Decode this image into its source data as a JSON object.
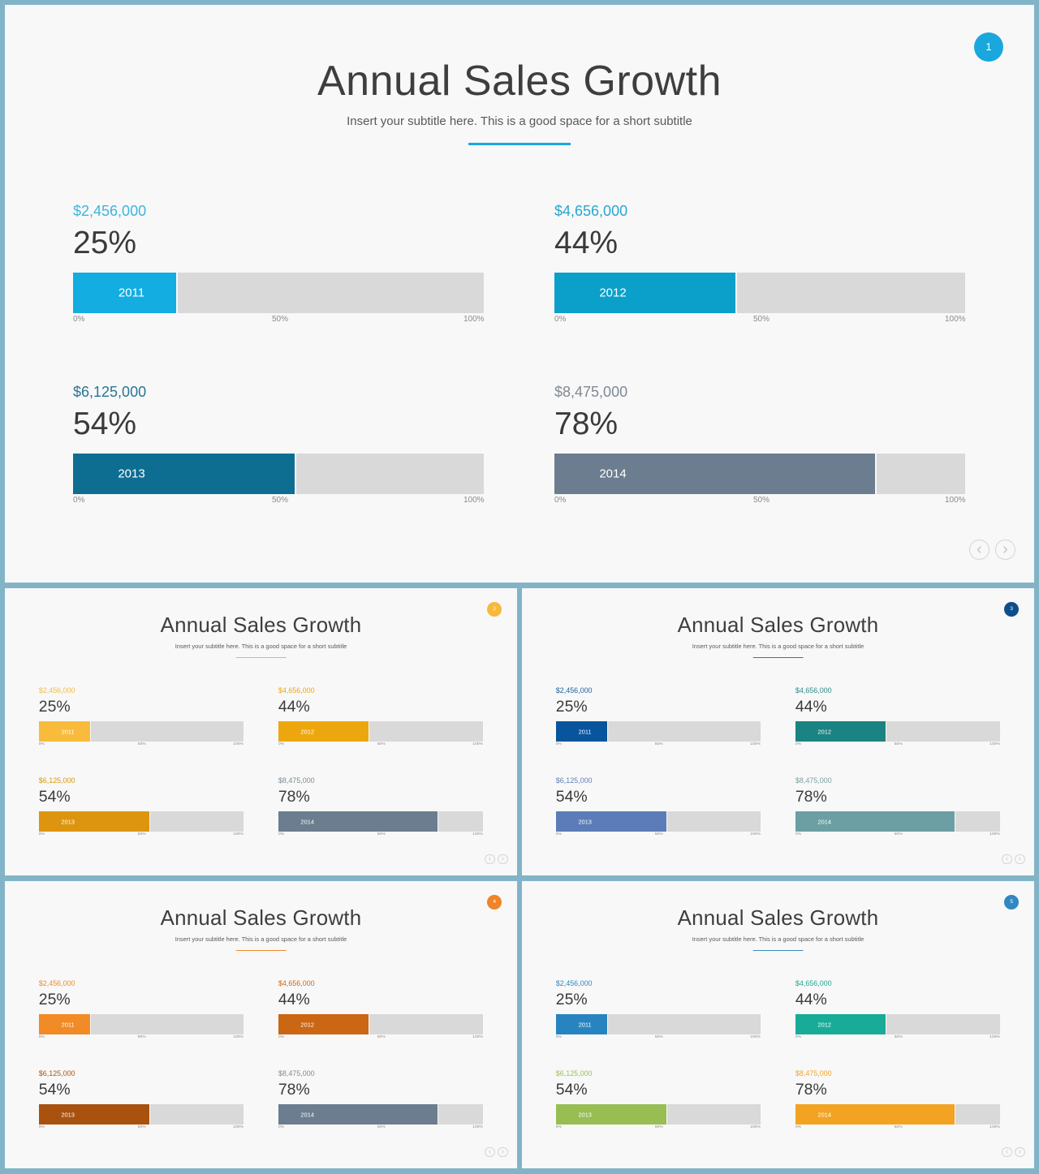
{
  "title": "Annual Sales Growth",
  "subtitle": "Insert your subtitle here. This is a good space for a short subtitle",
  "ticks": [
    "0%",
    "50%",
    "100%"
  ],
  "nav": {
    "prev": "‹",
    "next": "›"
  },
  "metrics": [
    {
      "amount": "$2,456,000",
      "percent": "25%",
      "year": "2011",
      "fraction": 0.25
    },
    {
      "amount": "$4,656,000",
      "percent": "44%",
      "year": "2012",
      "fraction": 0.44
    },
    {
      "amount": "$6,125,000",
      "percent": "54%",
      "year": "2013",
      "fraction": 0.54
    },
    {
      "amount": "$8,475,000",
      "percent": "78%",
      "year": "2014",
      "fraction": 0.78
    }
  ],
  "slides": [
    {
      "page": "1",
      "page_color": "#1aa7dd",
      "underline_color": "#1aa7dd",
      "bar_colors": [
        "#13ade2",
        "#0ba0c9",
        "#0e6e92",
        "#6b7d8f"
      ],
      "amount_colors": [
        "#3eb5de",
        "#2aa6cf",
        "#2a7591",
        "#7f8a94"
      ]
    },
    {
      "page": "2",
      "page_color": "#f6b93d",
      "underline_color": "#f2b640",
      "bar_colors": [
        "#f8bb3c",
        "#eda70e",
        "#dd9510",
        "#6b7d8f"
      ],
      "amount_colors": [
        "#f2bb42",
        "#eea510",
        "#d9930f",
        "#7f8a94"
      ]
    },
    {
      "page": "3",
      "page_color": "#0e4e8a",
      "underline_color": "#2f7c98",
      "bar_colors": [
        "#08559d",
        "#1b8381",
        "#5b7cb8",
        "#6b9fa4"
      ],
      "amount_colors": [
        "#1b5f9e",
        "#2c8b89",
        "#5f7fb8",
        "#7a9ea2"
      ]
    },
    {
      "page": "4",
      "page_color": "#ef8428",
      "underline_color": "#ef8a2a",
      "bar_colors": [
        "#f28a25",
        "#cb6614",
        "#a9520f",
        "#6b7d8f"
      ],
      "amount_colors": [
        "#ef8a2a",
        "#cc6814",
        "#a9540f",
        "#7f8a94"
      ]
    },
    {
      "page": "5",
      "page_color": "#2f87c3",
      "underline_color": "#3c8dbf",
      "bar_colors": [
        "#2884c0",
        "#18ab98",
        "#98bd53",
        "#f2a322"
      ],
      "amount_colors": [
        "#2f87c3",
        "#1fa894",
        "#9bbd58",
        "#f0a324"
      ]
    }
  ]
}
